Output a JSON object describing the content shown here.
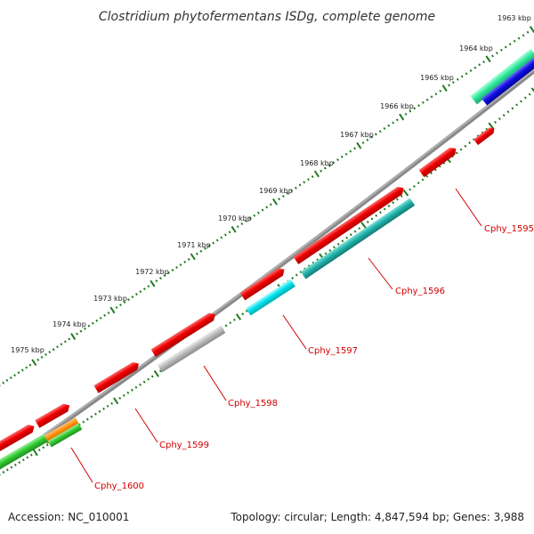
{
  "title": "Clostridium phytofermentans ISDg, complete genome",
  "footer": {
    "accession": "Accession: NC_010001",
    "summary": "Topology: circular; Length: 4,847,594 bp; Genes: 3,988"
  },
  "colors": {
    "backbone": "#8a8a8a",
    "tick": "#1f7a1f",
    "label": "#d40000",
    "gene_red": "#ee0000",
    "gene_teal": "#20b2aa",
    "gene_cyan": "#00e5ee",
    "gene_gray": "#b8b8b8",
    "gene_green": "#33cc33",
    "gene_orange": "#ff8c00",
    "gene_mint": "#2ee89a",
    "gene_blue": "#1010e0"
  },
  "kbp_labels": [
    "1963 kbp",
    "1964 kbp",
    "1965 kbp",
    "1966 kbp",
    "1967 kbp",
    "1968 kbp",
    "1969 kbp",
    "1970 kbp",
    "1971 kbp",
    "1972 kbp",
    "1973 kbp",
    "1974 kbp",
    "1975 kbp"
  ],
  "gene_labels": [
    "Cphy_1595",
    "Cphy_1596",
    "Cphy_1597",
    "Cphy_1598",
    "Cphy_1599",
    "Cphy_1600"
  ]
}
